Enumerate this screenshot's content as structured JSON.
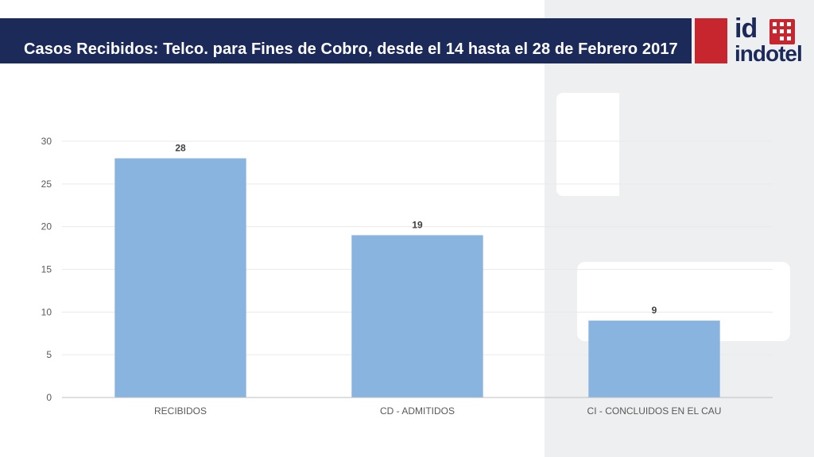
{
  "header": {
    "title": "Casos Recibidos: Telco. para Fines de Cobro, desde el 14 hasta el 28 de Febrero 2017"
  },
  "logo": {
    "id": "id",
    "word": "indotel",
    "accent_color": "#c8262e",
    "brand_color": "#1c2a5a"
  },
  "chart_data": {
    "type": "bar",
    "categories": [
      "RECIBIDOS",
      "CD - ADMITIDOS",
      "CI - CONCLUIDOS EN EL CAU"
    ],
    "values": [
      28,
      19,
      9
    ],
    "ylim": [
      0,
      30
    ],
    "yticks": [
      0,
      5,
      10,
      15,
      20,
      25,
      30
    ],
    "grid": true,
    "bar_color": "#8ab4e0",
    "data_labels": true
  }
}
